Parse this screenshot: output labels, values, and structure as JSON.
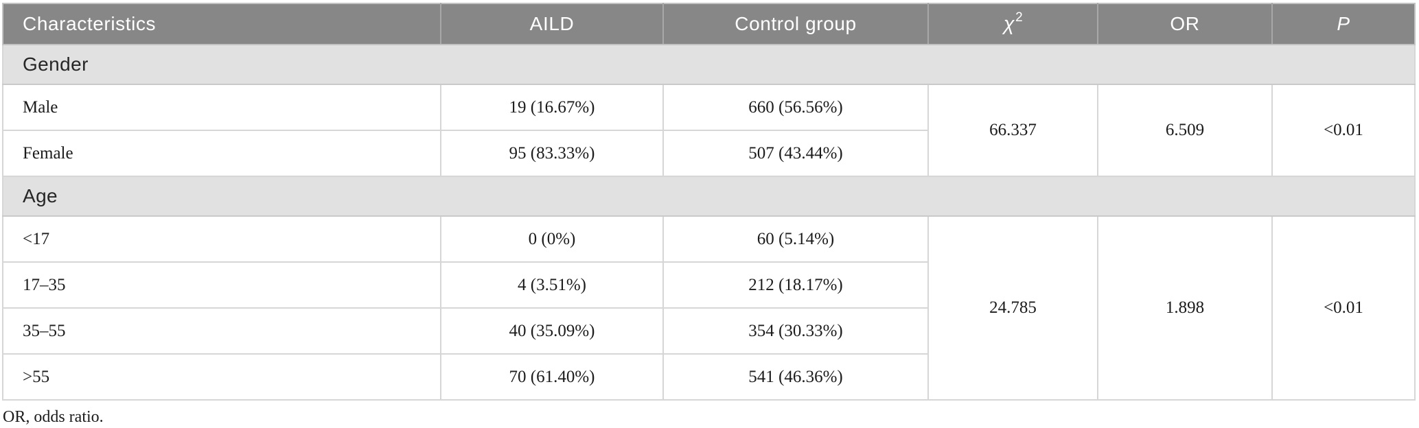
{
  "table": {
    "columns": {
      "characteristics": "Characteristics",
      "aild": "AILD",
      "control_group": "Control group",
      "chi_base": "χ",
      "chi_sup": "2",
      "odds_ratio": "OR",
      "p": "P"
    },
    "sections": [
      {
        "label": "Gender",
        "rows": [
          {
            "characteristic": "Male",
            "aild": "19 (16.67%)",
            "control_group": "660 (56.56%)"
          },
          {
            "characteristic": "Female",
            "aild": "95 (83.33%)",
            "control_group": "507 (43.44%)"
          }
        ],
        "chi_squared": "66.337",
        "odds_ratio": "6.509",
        "p_value": "<0.01"
      },
      {
        "label": "Age",
        "rows": [
          {
            "characteristic": "<17",
            "aild": "0 (0%)",
            "control_group": "60 (5.14%)"
          },
          {
            "characteristic": "17–35",
            "aild": "4 (3.51%)",
            "control_group": "212 (18.17%)"
          },
          {
            "characteristic": "35–55",
            "aild": "40 (35.09%)",
            "control_group": "354 (30.33%)"
          },
          {
            "characteristic": ">55",
            "aild": "70 (61.40%)",
            "control_group": "541 (46.36%)"
          }
        ],
        "chi_squared": "24.785",
        "odds_ratio": "1.898",
        "p_value": "<0.01"
      }
    ],
    "footnote": "OR, odds ratio."
  },
  "colors": {
    "header_bg": "#878787",
    "header_text": "#ffffff",
    "section_bg": "#e1e1e1",
    "body_text": "#1b1b1b",
    "border": "#c9c9c9"
  }
}
